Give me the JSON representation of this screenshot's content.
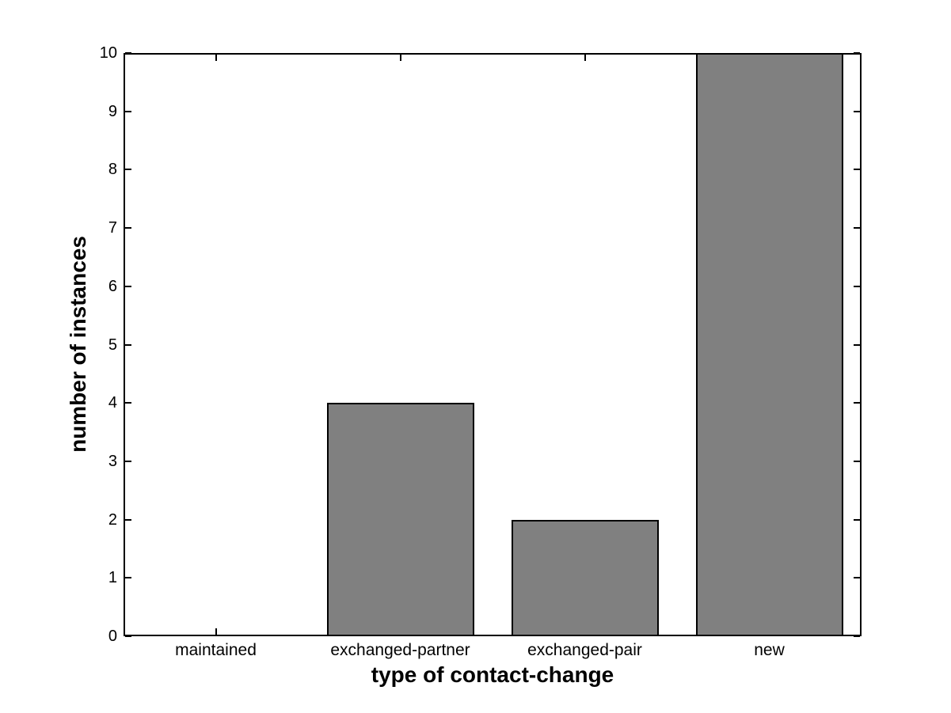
{
  "chart_data": {
    "type": "bar",
    "title": "",
    "categories": [
      "maintained",
      "exchanged-partner",
      "exchanged-pair",
      "new"
    ],
    "values": [
      0,
      4,
      2,
      10
    ],
    "xlabel": "type of contact-change",
    "ylabel": "number of instances",
    "ylim": [
      0,
      10
    ],
    "yticks": [
      0,
      1,
      2,
      3,
      4,
      5,
      6,
      7,
      8,
      9,
      10
    ],
    "bar_width_fraction": 0.8,
    "grid": false,
    "legend": null,
    "box": true,
    "colors": {
      "bar_fill": "#808080",
      "bar_edge": "#000000",
      "axis": "#000000",
      "background": "#ffffff",
      "text": "#000000"
    }
  }
}
